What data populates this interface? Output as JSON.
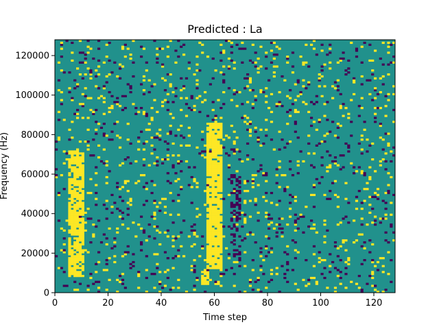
{
  "chart_data": {
    "type": "heatmap",
    "title": "Predicted : La",
    "xlabel": "Time step",
    "ylabel": "Frequency (Hz)",
    "xlim": [
      0,
      128
    ],
    "ylim": [
      0,
      128000
    ],
    "xticks": [
      0,
      20,
      40,
      60,
      80,
      100,
      120
    ],
    "yticks": [
      0,
      20000,
      40000,
      60000,
      80000,
      100000,
      120000
    ],
    "value_levels": {
      "low": -1,
      "mid": 0,
      "high": 1
    },
    "colors": {
      "low": "#440154",
      "mid": "#21918c",
      "high": "#fde725"
    },
    "grid": false,
    "legend": "none",
    "dense_bands": [
      {
        "value": 1,
        "x_range": [
          5,
          11
        ],
        "y_range": [
          8000,
          72000
        ],
        "density": 0.8
      },
      {
        "value": 1,
        "x_range": [
          57,
          63
        ],
        "y_range": [
          12000,
          86000
        ],
        "density": 0.85
      },
      {
        "value": 1,
        "x_range": [
          55,
          58
        ],
        "y_range": [
          4000,
          12000
        ],
        "density": 0.7
      },
      {
        "value": -1,
        "x_range": [
          66,
          70
        ],
        "y_range": [
          16000,
          60000
        ],
        "density": 0.35
      }
    ],
    "scatter_density": {
      "high": 0.045,
      "low": 0.045
    }
  }
}
